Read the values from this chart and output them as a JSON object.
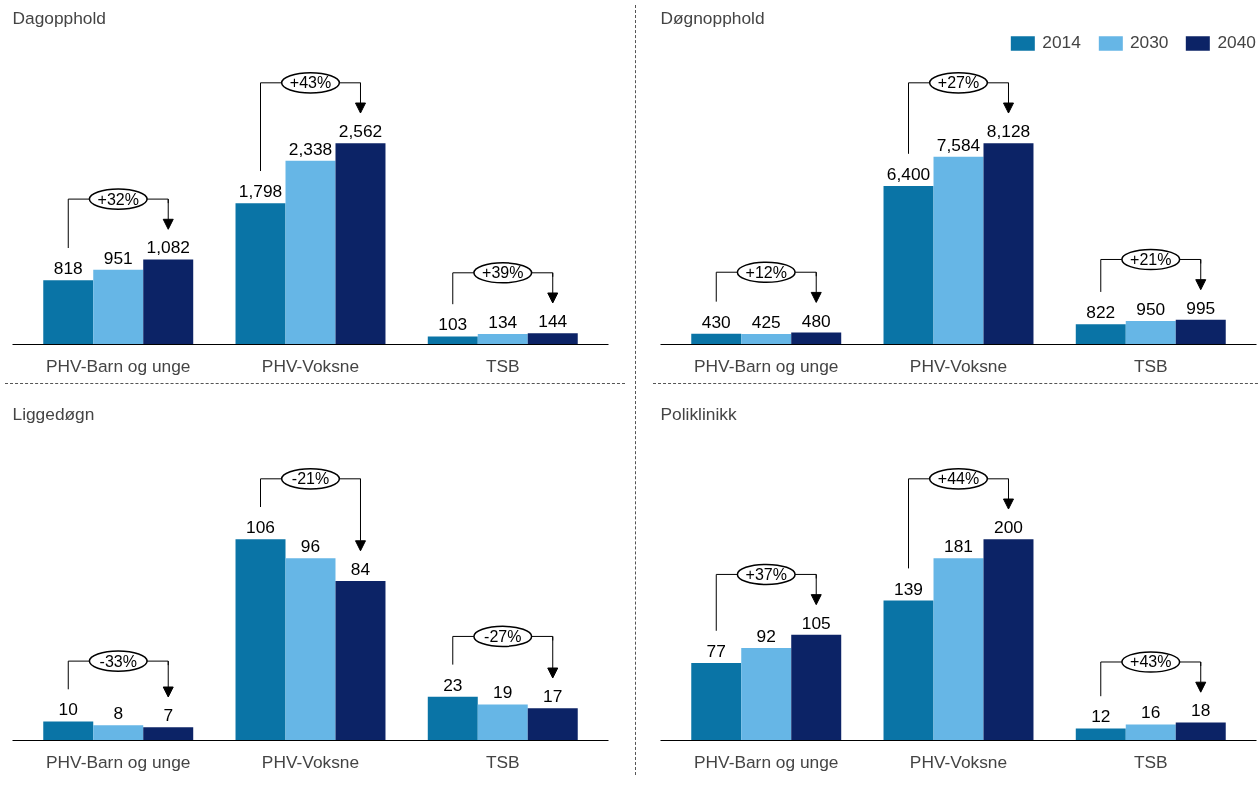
{
  "chart_data": [
    {
      "type": "bar",
      "title": "Dagopphold",
      "categories": [
        "PHV-Barn og unge",
        "PHV-Voksne",
        "TSB"
      ],
      "series": [
        {
          "color": "#0a74a6",
          "values": [
            818,
            1798,
            103
          ],
          "value_labels": [
            "818",
            "1,798",
            "103"
          ]
        },
        {
          "color": "#66b6e6",
          "values": [
            951,
            2338,
            134
          ],
          "value_labels": [
            "951",
            "2,338",
            "134"
          ]
        },
        {
          "color": "#0c2366",
          "values": [
            1082,
            2562,
            144
          ],
          "value_labels": [
            "1,082",
            "2,562",
            "144"
          ]
        }
      ],
      "annotations": [
        "+32%",
        "+43%",
        "+39%"
      ]
    },
    {
      "type": "bar",
      "title": "Døgnopphold",
      "categories": [
        "PHV-Barn og unge",
        "PHV-Voksne",
        "TSB"
      ],
      "legend": "top right",
      "series": [
        {
          "name": "2014",
          "color": "#0a74a6",
          "values": [
            430,
            6400,
            822
          ],
          "value_labels": [
            "430",
            "6,400",
            "822"
          ]
        },
        {
          "name": "2030",
          "color": "#66b6e6",
          "values": [
            425,
            7584,
            950
          ],
          "value_labels": [
            "425",
            "7,584",
            "950"
          ]
        },
        {
          "name": "2040",
          "color": "#0c2366",
          "values": [
            480,
            8128,
            995
          ],
          "value_labels": [
            "480",
            "8,128",
            "995"
          ]
        }
      ],
      "annotations": [
        "+12%",
        "+27%",
        "+21%"
      ]
    },
    {
      "type": "bar",
      "title": "Liggedøgn",
      "categories": [
        "PHV-Barn og unge",
        "PHV-Voksne",
        "TSB"
      ],
      "data_labels": true,
      "series": [
        {
          "color": "#0a74a6",
          "values": [
            10,
            106,
            23
          ]
        },
        {
          "color": "#66b6e6",
          "values": [
            8,
            96,
            19
          ]
        },
        {
          "color": "#0c2366",
          "values": [
            7,
            84,
            17
          ]
        }
      ],
      "annotations": [
        "-33%",
        "-21%",
        "-27%"
      ]
    },
    {
      "type": "bar",
      "title": "Poliklinikk",
      "categories": [
        "PHV-Barn og unge",
        "PHV-Voksne",
        "TSB"
      ],
      "data_labels": true,
      "series": [
        {
          "color": "#0a74a6",
          "values": [
            77,
            139,
            12
          ]
        },
        {
          "color": "#66b6e6",
          "values": [
            92,
            181,
            16
          ]
        },
        {
          "color": "#0c2366",
          "values": [
            105,
            200,
            18
          ]
        }
      ],
      "annotations": [
        "+37%",
        "+44%",
        "+43%"
      ]
    }
  ]
}
